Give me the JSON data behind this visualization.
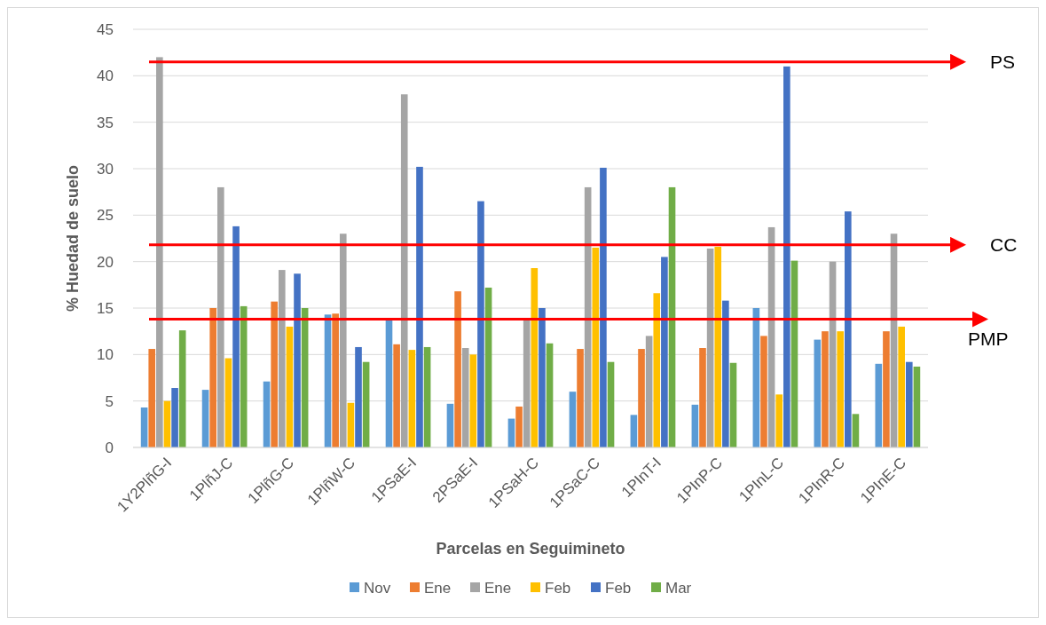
{
  "chart_data": {
    "type": "bar",
    "xlabel": "Parcelas en Seguimineto",
    "ylabel": "%  Huedad de suelo",
    "categories": [
      "1Y2PlñG-I",
      "1PlñJ-C",
      "1PlñG-C",
      "1PlñW-C",
      "1PSaE-I",
      "2PSaE-I",
      "1PSaH-C",
      "1PSaC-C",
      "1PInT-I",
      "1PInP-C",
      "1PInL-C",
      "1PInR-C",
      "1PInE-C"
    ],
    "series": [
      {
        "name": "Nov",
        "color": "#5b9bd5",
        "values": [
          4.3,
          6.2,
          7.1,
          14.3,
          13.8,
          4.7,
          3.1,
          6,
          3.5,
          4.6,
          15,
          11.6,
          9
        ]
      },
      {
        "name": "Ene",
        "color": "#ed7d31",
        "values": [
          10.6,
          15,
          15.7,
          14.4,
          11.1,
          16.8,
          4.4,
          10.6,
          10.6,
          10.7,
          12,
          12.5,
          12.5
        ]
      },
      {
        "name": "Ene",
        "color": "#a5a5a5",
        "values": [
          42,
          28,
          19.1,
          23,
          38,
          10.7,
          13.9,
          28,
          12,
          21.4,
          23.7,
          20,
          23
        ]
      },
      {
        "name": "Feb",
        "color": "#ffc000",
        "values": [
          5,
          9.6,
          13,
          4.8,
          10.5,
          10,
          19.3,
          21.5,
          16.6,
          21.6,
          5.7,
          12.5,
          13
        ]
      },
      {
        "name": "Feb",
        "color": "#4472c4",
        "values": [
          6.4,
          23.8,
          18.7,
          10.8,
          30.2,
          26.5,
          15,
          30.1,
          20.5,
          15.8,
          41,
          25.4,
          9.2
        ]
      },
      {
        "name": "Mar",
        "color": "#70ad47",
        "values": [
          12.6,
          15.2,
          15,
          9.2,
          10.8,
          17.2,
          11.2,
          9.2,
          28,
          9.1,
          20.1,
          3.6,
          8.7
        ]
      }
    ],
    "ylim": [
      0,
      45
    ],
    "yticks": [
      0,
      5,
      10,
      15,
      20,
      25,
      30,
      35,
      40,
      45
    ],
    "grid": "y",
    "legend": "bottom",
    "ref_lines": [
      {
        "axis": "y",
        "value": 41.5,
        "label": "PS",
        "color": "#ff0000"
      },
      {
        "axis": "y",
        "value": 21.8,
        "label": "CC",
        "color": "#ff0000"
      },
      {
        "axis": "y",
        "value": 13.8,
        "label": "PMP",
        "color": "#ff0000"
      }
    ]
  }
}
